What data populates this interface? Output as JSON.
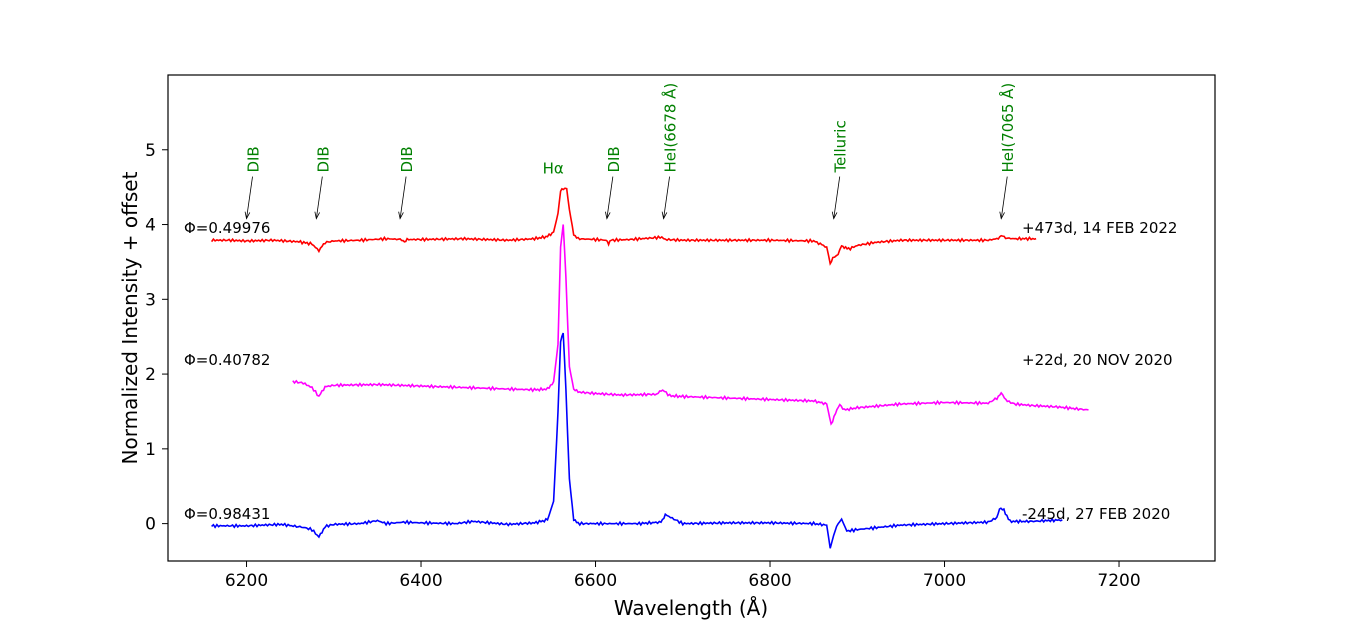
{
  "chart_data": {
    "type": "line",
    "xlabel": "Wavelength (Å)",
    "ylabel": "Normalized Intensity + offset",
    "xlim": [
      6110,
      7310
    ],
    "ylim": [
      -0.5,
      6.0
    ],
    "x_ticks": [
      6200,
      6400,
      6600,
      6800,
      7000,
      7200
    ],
    "y_ticks": [
      0,
      1,
      2,
      3,
      4,
      5
    ],
    "grid": false,
    "series": [
      {
        "color": "#ff0000",
        "phase_label": "Φ=0.49976",
        "date_label": "+473d, 14 FEB 2022",
        "x": [
          6160,
          6180,
          6200,
          6230,
          6260,
          6275,
          6283,
          6290,
          6300,
          6330,
          6360,
          6378,
          6381,
          6384,
          6400,
          6450,
          6500,
          6530,
          6545,
          6552,
          6557,
          6560,
          6563,
          6567,
          6570,
          6575,
          6580,
          6600,
          6612,
          6615,
          6618,
          6640,
          6676,
          6680,
          6700,
          6750,
          6800,
          6850,
          6865,
          6869,
          6872,
          6878,
          6882,
          6885,
          6890,
          6900,
          6920,
          6950,
          7000,
          7050,
          7060,
          7065,
          7070,
          7080,
          7105
        ],
        "y": [
          3.79,
          3.79,
          3.78,
          3.79,
          3.77,
          3.74,
          3.65,
          3.76,
          3.78,
          3.79,
          3.81,
          3.8,
          3.77,
          3.8,
          3.8,
          3.81,
          3.79,
          3.81,
          3.84,
          3.9,
          4.15,
          4.45,
          4.48,
          4.48,
          4.2,
          3.87,
          3.81,
          3.8,
          3.79,
          3.74,
          3.79,
          3.8,
          3.83,
          3.8,
          3.79,
          3.79,
          3.79,
          3.78,
          3.7,
          3.48,
          3.55,
          3.6,
          3.72,
          3.7,
          3.67,
          3.72,
          3.76,
          3.79,
          3.79,
          3.79,
          3.81,
          3.85,
          3.82,
          3.81,
          3.81
        ]
      },
      {
        "color": "#ff00ff",
        "phase_label": "Φ=0.40782",
        "date_label": "+22d, 20 NOV 2020",
        "x": [
          6253,
          6265,
          6275,
          6283,
          6290,
          6300,
          6350,
          6400,
          6450,
          6500,
          6530,
          6545,
          6552,
          6557,
          6560,
          6563,
          6566,
          6570,
          6575,
          6580,
          6600,
          6630,
          6670,
          6677,
          6685,
          6700,
          6750,
          6800,
          6850,
          6865,
          6870,
          6875,
          6880,
          6885,
          6900,
          6950,
          7000,
          7050,
          7060,
          7065,
          7072,
          7080,
          7100,
          7130,
          7165
        ],
        "y": [
          1.9,
          1.88,
          1.82,
          1.7,
          1.83,
          1.85,
          1.86,
          1.84,
          1.82,
          1.8,
          1.79,
          1.8,
          1.9,
          2.4,
          3.7,
          4.0,
          3.3,
          2.1,
          1.8,
          1.76,
          1.74,
          1.72,
          1.73,
          1.79,
          1.71,
          1.7,
          1.68,
          1.66,
          1.64,
          1.6,
          1.33,
          1.47,
          1.6,
          1.52,
          1.55,
          1.6,
          1.62,
          1.61,
          1.68,
          1.74,
          1.64,
          1.6,
          1.58,
          1.56,
          1.52
        ]
      },
      {
        "color": "#0000ff",
        "phase_label": "Φ=0.98431",
        "date_label": "-245d, 27 FEB 2020",
        "x": [
          6160,
          6200,
          6240,
          6265,
          6275,
          6283,
          6290,
          6300,
          6330,
          6350,
          6360,
          6380,
          6400,
          6440,
          6460,
          6500,
          6530,
          6545,
          6552,
          6557,
          6560,
          6563,
          6566,
          6570,
          6575,
          6580,
          6600,
          6650,
          6675,
          6680,
          6700,
          6750,
          6800,
          6850,
          6865,
          6869,
          6873,
          6878,
          6882,
          6888,
          6900,
          6950,
          7000,
          7050,
          7060,
          7063,
          7068,
          7075,
          7100,
          7135
        ],
        "y": [
          -0.03,
          -0.03,
          -0.01,
          -0.05,
          -0.08,
          -0.18,
          -0.04,
          -0.01,
          0.0,
          0.04,
          0.0,
          0.02,
          0.01,
          0.0,
          0.03,
          -0.01,
          0.01,
          0.05,
          0.3,
          1.5,
          2.45,
          2.55,
          1.8,
          0.6,
          0.05,
          0.0,
          0.0,
          0.0,
          0.02,
          0.12,
          0.0,
          0.01,
          0.01,
          0.0,
          -0.02,
          -0.33,
          -0.15,
          0.0,
          0.06,
          -0.1,
          -0.08,
          -0.02,
          0.0,
          0.02,
          0.08,
          0.2,
          0.18,
          0.03,
          0.03,
          0.05
        ]
      }
    ],
    "annotations": [
      {
        "text": "DIB",
        "x": 6200,
        "arrow_y": 4.08,
        "rotated": true
      },
      {
        "text": "DIB",
        "x": 6280,
        "arrow_y": 4.08,
        "rotated": true
      },
      {
        "text": "DIB",
        "x": 6376,
        "arrow_y": 4.08,
        "rotated": true
      },
      {
        "text": "Hα",
        "x": 6563,
        "rotated": false
      },
      {
        "text": "DIB",
        "x": 6613,
        "arrow_y": 4.08,
        "rotated": true
      },
      {
        "text": "HeI(6678 Å)",
        "x": 6678,
        "arrow_y": 4.08,
        "rotated": true
      },
      {
        "text": "Telluric",
        "x": 6873,
        "arrow_y": 4.08,
        "rotated": true
      },
      {
        "text": "HeI(7065 Å)",
        "x": 7065,
        "arrow_y": 4.08,
        "rotated": true
      }
    ],
    "annotation_color": "#008000"
  }
}
